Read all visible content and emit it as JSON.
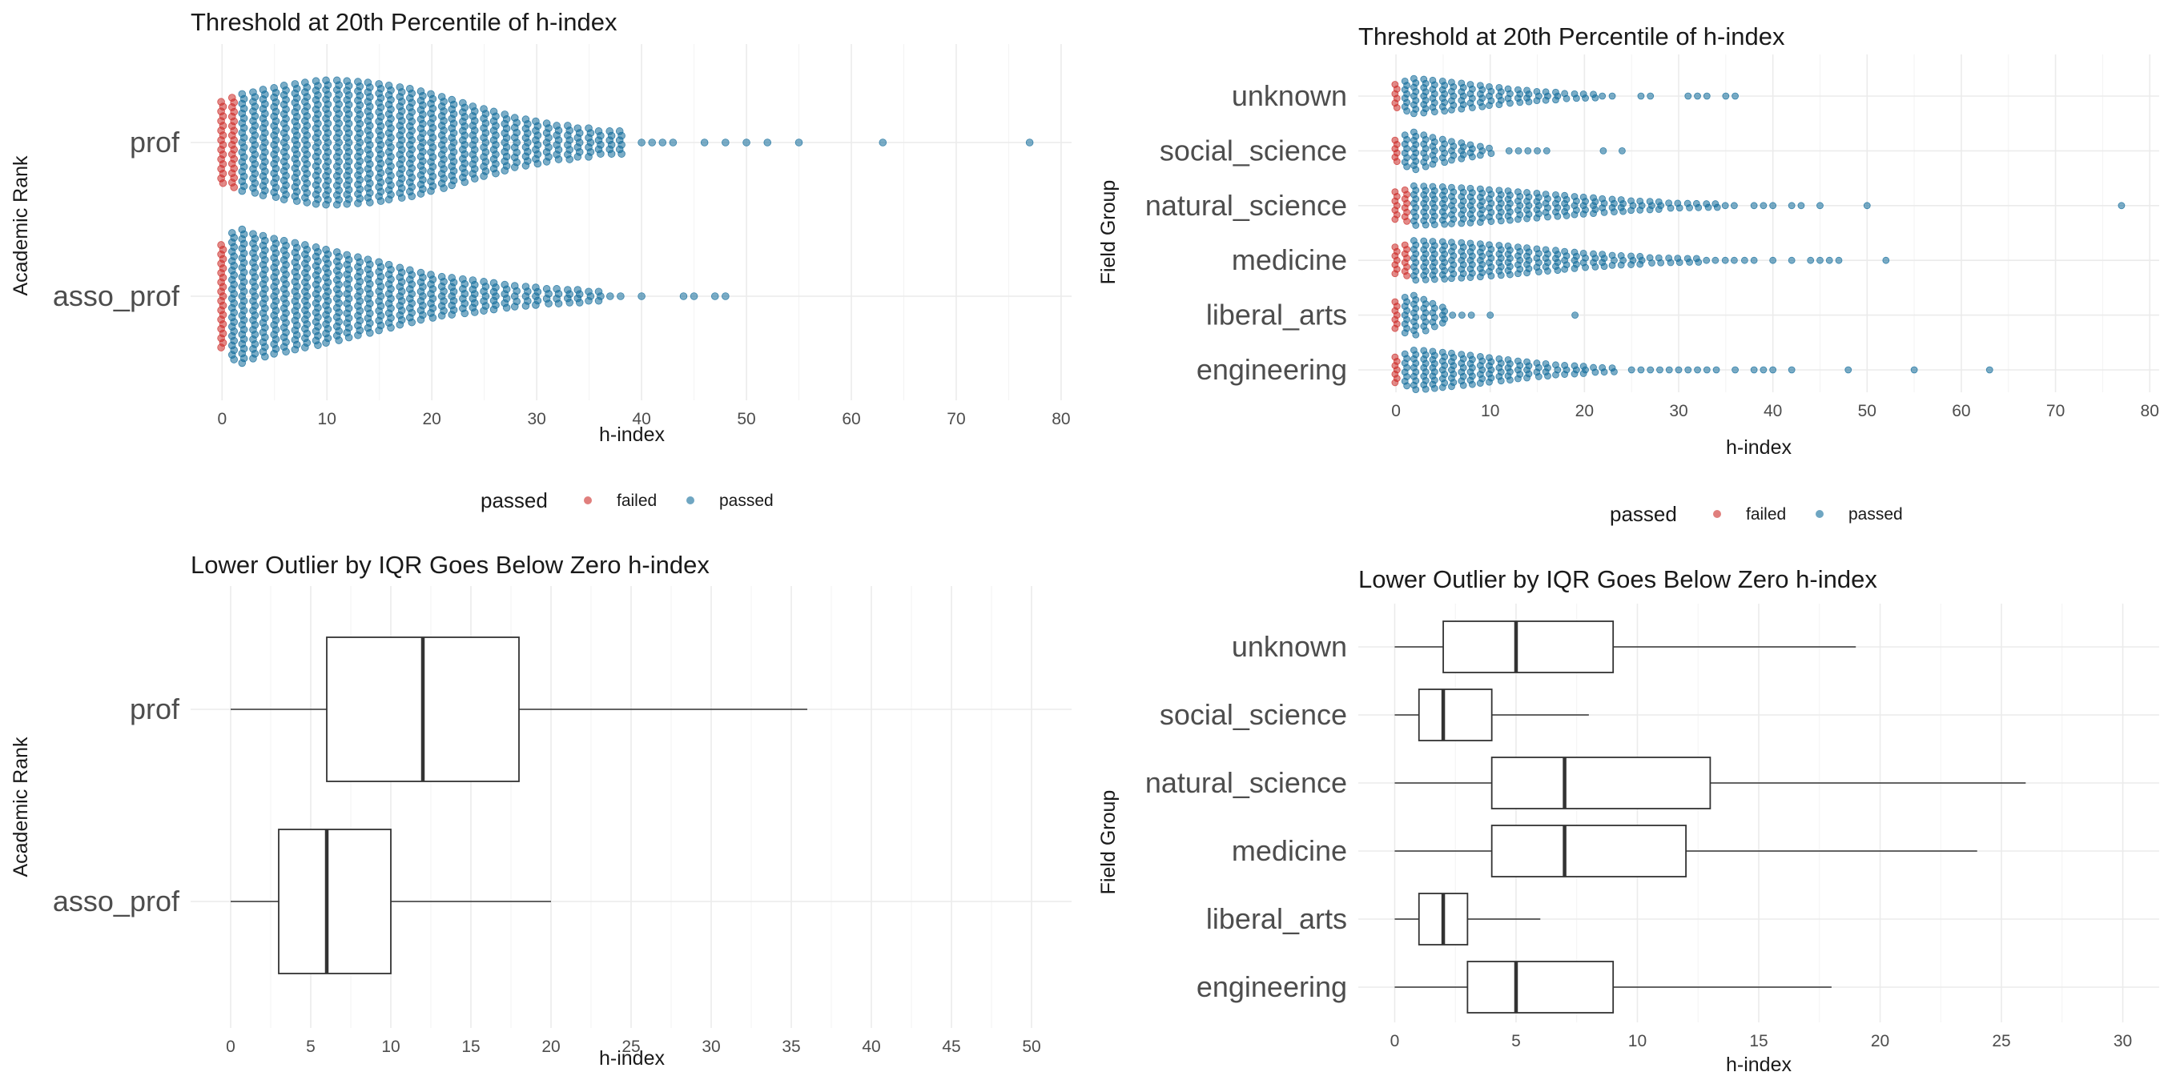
{
  "colors": {
    "failed": "#cc2a27",
    "passed": "#0f6a99",
    "box_stroke": "#333333",
    "grid": "#ebebeb"
  },
  "legend": {
    "title": "passed",
    "failed_label": "failed",
    "passed_label": "passed"
  },
  "chart_data": [
    {
      "type": "scatter",
      "subtype": "beeswarm",
      "title": "Threshold at 20th Percentile of h-index",
      "xlabel": "h-index",
      "ylabel": "Academic Rank",
      "categories": [
        "prof",
        "asso_prof"
      ],
      "xlim": [
        -3,
        81
      ],
      "xticks": [
        "0",
        "10",
        "20",
        "30",
        "40",
        "50",
        "60",
        "70",
        "80"
      ],
      "threshold": {
        "prof": 2,
        "asso_prof": 1
      },
      "max_half_width": {
        "prof": 0.42,
        "asso_prof": 0.45
      },
      "series": [
        {
          "category": "prof",
          "bulk": {
            "values": [
              0,
              1,
              2,
              3,
              4,
              5,
              6,
              7,
              8,
              9,
              10,
              11,
              12,
              13,
              14,
              15,
              16,
              17,
              18,
              19,
              20,
              21,
              22,
              23,
              24,
              25,
              26,
              27,
              28,
              29,
              30,
              31,
              32,
              33,
              34,
              35,
              36,
              37,
              38
            ],
            "counts": [
              20,
              24,
              28,
              30,
              33,
              35,
              38,
              40,
              42,
              44,
              45,
              45,
              44,
              43,
              42,
              40,
              38,
              36,
              34,
              31,
              28,
              25,
              22,
              19,
              16,
              14,
              12,
              10,
              8,
              7,
              6,
              5,
              4,
              4,
              3,
              3,
              2,
              2,
              2
            ]
          },
          "outliers": [
            40,
            41,
            42,
            43,
            46,
            48,
            50,
            52,
            55,
            63,
            77
          ]
        },
        {
          "category": "asso_prof",
          "bulk": {
            "values": [
              0,
              1,
              2,
              3,
              4,
              5,
              6,
              7,
              8,
              9,
              10,
              11,
              12,
              13,
              14,
              15,
              16,
              17,
              18,
              19,
              20,
              21,
              22,
              23,
              24,
              25,
              26,
              27,
              28,
              29,
              30,
              31,
              32,
              33,
              34,
              35,
              36
            ],
            "counts": [
              120,
              180,
              200,
              175,
              165,
              150,
              140,
              130,
              120,
              110,
              100,
              90,
              80,
              72,
              64,
              56,
              48,
              40,
              34,
              28,
              24,
              20,
              18,
              16,
              14,
              12,
              10,
              8,
              7,
              6,
              5,
              4,
              4,
              3,
              3,
              2,
              2
            ]
          },
          "outliers": [
            37,
            38,
            40,
            44,
            45,
            47,
            48
          ]
        }
      ]
    },
    {
      "type": "scatter",
      "subtype": "beeswarm",
      "title": "Threshold at 20th Percentile of h-index",
      "xlabel": "h-index",
      "ylabel": "Field Group",
      "categories": [
        "unknown",
        "social_science",
        "natural_science",
        "medicine",
        "liberal_arts",
        "engineering"
      ],
      "xlim": [
        -4,
        81
      ],
      "xticks": [
        "0",
        "10",
        "20",
        "30",
        "40",
        "50",
        "60",
        "70",
        "80"
      ],
      "threshold": {
        "unknown": 1,
        "social_science": 1,
        "natural_science": 2,
        "medicine": 2,
        "liberal_arts": 1,
        "engineering": 1
      },
      "max_half_width": {
        "unknown": 0.36,
        "social_science": 0.38,
        "natural_science": 0.4,
        "medicine": 0.4,
        "liberal_arts": 0.4,
        "engineering": 0.4
      },
      "series": [
        {
          "category": "unknown",
          "bulk": {
            "values": [
              0,
              1,
              2,
              3,
              4,
              5,
              6,
              7,
              8,
              9,
              10,
              11,
              12,
              13,
              14,
              15,
              16,
              17,
              18,
              19,
              20,
              21,
              22,
              23
            ],
            "counts": [
              60,
              90,
              120,
              110,
              100,
              90,
              80,
              70,
              60,
              50,
              42,
              35,
              28,
              22,
              18,
              14,
              12,
              10,
              8,
              6,
              5,
              4,
              3,
              3
            ]
          },
          "outliers": [
            26,
            27,
            31,
            32,
            33,
            35,
            36
          ]
        },
        {
          "category": "social_science",
          "bulk": {
            "values": [
              0,
              1,
              2,
              3,
              4,
              5,
              6,
              7,
              8,
              9,
              10
            ],
            "counts": [
              30,
              60,
              80,
              60,
              45,
              35,
              25,
              18,
              12,
              8,
              5
            ]
          },
          "outliers": [
            12,
            13,
            14,
            15,
            16,
            22,
            24
          ]
        },
        {
          "category": "natural_science",
          "bulk": {
            "values": [
              0,
              1,
              2,
              3,
              4,
              5,
              6,
              7,
              8,
              9,
              10,
              11,
              12,
              13,
              14,
              15,
              16,
              17,
              18,
              19,
              20,
              21,
              22,
              23,
              24,
              25,
              26,
              27,
              28,
              29,
              30,
              31,
              32,
              33,
              34,
              35,
              36
            ],
            "counts": [
              80,
              100,
              150,
              145,
              140,
              135,
              130,
              125,
              118,
              110,
              102,
              95,
              88,
              80,
              72,
              65,
              58,
              52,
              46,
              40,
              35,
              30,
              26,
              22,
              19,
              16,
              14,
              12,
              10,
              8,
              7,
              6,
              5,
              4,
              4,
              3,
              3
            ]
          },
          "outliers": [
            38,
            39,
            40,
            42,
            43,
            45,
            50,
            77
          ]
        },
        {
          "category": "medicine",
          "bulk": {
            "values": [
              0,
              1,
              2,
              3,
              4,
              5,
              6,
              7,
              8,
              9,
              10,
              11,
              12,
              13,
              14,
              15,
              16,
              17,
              18,
              19,
              20,
              21,
              22,
              23,
              24,
              25,
              26,
              27,
              28,
              29,
              30,
              31,
              32,
              33,
              34,
              35,
              36
            ],
            "counts": [
              70,
              90,
              140,
              135,
              130,
              125,
              120,
              115,
              108,
              100,
              92,
              85,
              78,
              70,
              62,
              55,
              48,
              42,
              36,
              30,
              26,
              22,
              19,
              16,
              14,
              12,
              10,
              8,
              7,
              6,
              5,
              4,
              4,
              3,
              3,
              2,
              2
            ]
          },
          "outliers": [
            37,
            38,
            40,
            42,
            44,
            45,
            46,
            47,
            52
          ]
        },
        {
          "category": "liberal_arts",
          "bulk": {
            "values": [
              0,
              1,
              2,
              3,
              4,
              5
            ],
            "counts": [
              15,
              25,
              30,
              20,
              12,
              6
            ]
          },
          "outliers": [
            6,
            7,
            8,
            10,
            19
          ]
        },
        {
          "category": "engineering",
          "bulk": {
            "values": [
              0,
              1,
              2,
              3,
              4,
              5,
              6,
              7,
              8,
              9,
              10,
              11,
              12,
              13,
              14,
              15,
              16,
              17,
              18,
              19,
              20,
              21,
              22,
              23
            ],
            "counts": [
              60,
              90,
              130,
              125,
              115,
              105,
              95,
              85,
              75,
              65,
              55,
              47,
              40,
              33,
              27,
              22,
              18,
              15,
              12,
              10,
              8,
              6,
              5,
              4
            ]
          },
          "outliers": [
            25,
            26,
            27,
            28,
            29,
            30,
            31,
            32,
            33,
            34,
            36,
            38,
            39,
            40,
            42,
            48,
            55,
            63
          ]
        }
      ]
    },
    {
      "type": "box",
      "title": "Lower Outlier by IQR Goes Below Zero h-index",
      "xlabel": "h-index",
      "ylabel": "Academic Rank",
      "categories": [
        "prof",
        "asso_prof"
      ],
      "xlim": [
        -2.5,
        52.5
      ],
      "xticks": [
        "0",
        "5",
        "10",
        "15",
        "20",
        "25",
        "30",
        "35",
        "40",
        "45",
        "50"
      ],
      "boxes": [
        {
          "category": "prof",
          "whisker_low": 0,
          "q1": 6,
          "median": 12,
          "q3": 18,
          "whisker_high": 36
        },
        {
          "category": "asso_prof",
          "whisker_low": 0,
          "q1": 3,
          "median": 6,
          "q3": 10,
          "whisker_high": 20
        }
      ]
    },
    {
      "type": "box",
      "title": "Lower Outlier by IQR Goes Below Zero h-index",
      "xlabel": "h-index",
      "ylabel": "Field Group",
      "categories": [
        "unknown",
        "social_science",
        "natural_science",
        "medicine",
        "liberal_arts",
        "engineering"
      ],
      "xlim": [
        -1.5,
        31.5
      ],
      "xticks": [
        "0",
        "5",
        "10",
        "15",
        "20",
        "25",
        "30"
      ],
      "boxes": [
        {
          "category": "unknown",
          "whisker_low": 0,
          "q1": 2,
          "median": 5,
          "q3": 9,
          "whisker_high": 19
        },
        {
          "category": "social_science",
          "whisker_low": 0,
          "q1": 1,
          "median": 2,
          "q3": 4,
          "whisker_high": 8
        },
        {
          "category": "natural_science",
          "whisker_low": 0,
          "q1": 4,
          "median": 7,
          "q3": 13,
          "whisker_high": 26
        },
        {
          "category": "medicine",
          "whisker_low": 0,
          "q1": 4,
          "median": 7,
          "q3": 12,
          "whisker_high": 24
        },
        {
          "category": "liberal_arts",
          "whisker_low": 0,
          "q1": 1,
          "median": 2,
          "q3": 3,
          "whisker_high": 6
        },
        {
          "category": "engineering",
          "whisker_low": 0,
          "q1": 3,
          "median": 5,
          "q3": 9,
          "whisker_high": 18
        }
      ]
    }
  ]
}
